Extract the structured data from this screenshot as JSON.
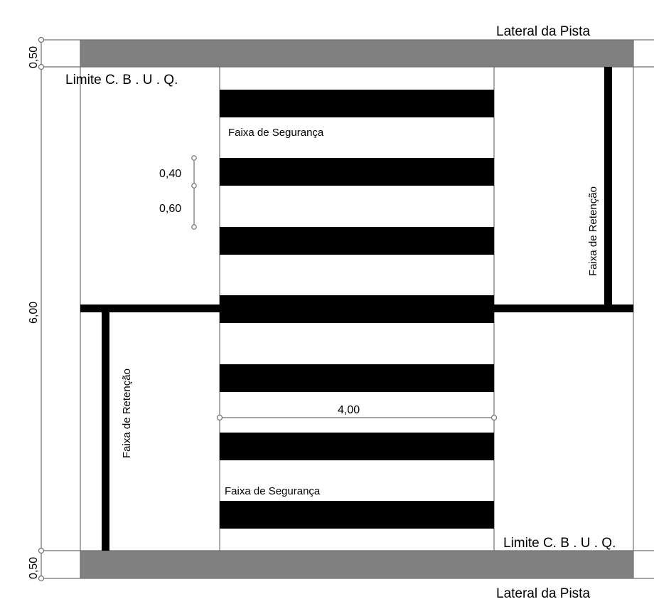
{
  "labels": {
    "lateral_top": "Lateral da Pista",
    "lateral_bottom": "Lateral da Pista",
    "limite_top": "Limite C. B . U . Q.",
    "limite_bottom": "Limite C. B . U . Q.",
    "faixa_seguranca_top": "Faixa de Segurança",
    "faixa_seguranca_bottom": "Faixa de Segurança",
    "faixa_retencao_left": "Faixa de Retenção",
    "faixa_retencao_right": "Faixa de Retenção"
  },
  "dimensions": {
    "shoulder_top": "0,50",
    "lane_height": "6,00",
    "shoulder_bottom": "0,50",
    "crosswalk_width": "4,00",
    "stripe_height": "0,40",
    "stripe_gap": "0,60"
  },
  "colors": {
    "shoulder": "#808080",
    "stripe": "#000000",
    "line": "#000000",
    "thin_line": "#707070"
  }
}
